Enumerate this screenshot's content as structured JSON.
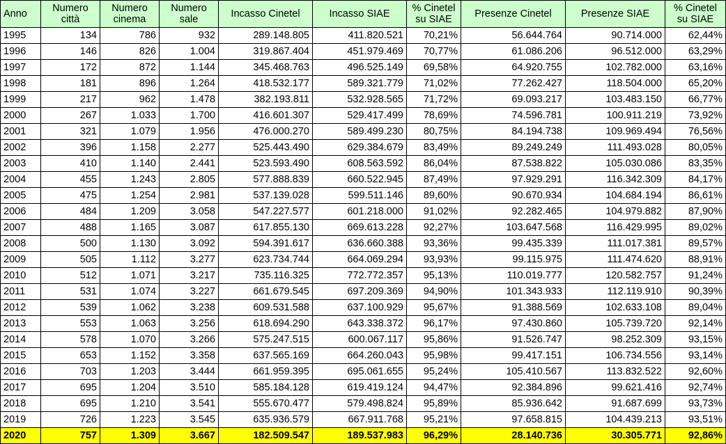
{
  "columns": [
    "Anno",
    "Numero città",
    "Numero cinema",
    "Numero sale",
    "Incasso Cinetel",
    "Incasso SIAE",
    "% Cinetel su SIAE",
    "Presenze Cinetel",
    "Presenze SIAE",
    "% Cinetel su SIAE"
  ],
  "rows": [
    [
      "1995",
      "134",
      "786",
      "932",
      "289.148.805",
      "411.820.521",
      "70,21%",
      "56.644.764",
      "90.714.000",
      "62,44%"
    ],
    [
      "1996",
      "146",
      "826",
      "1.004",
      "319.867.404",
      "451.979.469",
      "70,77%",
      "61.086.206",
      "96.512.000",
      "63,29%"
    ],
    [
      "1997",
      "172",
      "872",
      "1.144",
      "345.468.763",
      "496.525.149",
      "69,58%",
      "64.920.755",
      "102.782.000",
      "63,16%"
    ],
    [
      "1998",
      "181",
      "896",
      "1.264",
      "418.532.177",
      "589.321.779",
      "71,02%",
      "77.262.427",
      "118.504.000",
      "65,20%"
    ],
    [
      "1999",
      "217",
      "962",
      "1.478",
      "382.193.811",
      "532.928.565",
      "71,72%",
      "69.093.217",
      "103.483.150",
      "66,77%"
    ],
    [
      "2000",
      "267",
      "1.033",
      "1.700",
      "416.601.307",
      "529.417.499",
      "78,69%",
      "74.596.781",
      "100.911.219",
      "73,92%"
    ],
    [
      "2001",
      "321",
      "1.079",
      "1.956",
      "476.000.270",
      "589.499.230",
      "80,75%",
      "84.194.738",
      "109.969.494",
      "76,56%"
    ],
    [
      "2002",
      "396",
      "1.158",
      "2.277",
      "525.443.490",
      "629.384.679",
      "83,49%",
      "89.249.249",
      "111.493.028",
      "80,05%"
    ],
    [
      "2003",
      "410",
      "1.140",
      "2.441",
      "523.593.490",
      "608.563.592",
      "86,04%",
      "87.538.822",
      "105.030.086",
      "83,35%"
    ],
    [
      "2004",
      "455",
      "1.243",
      "2.805",
      "577.888.839",
      "660.522.945",
      "87,49%",
      "97.929.291",
      "116.342.309",
      "84,17%"
    ],
    [
      "2005",
      "475",
      "1.254",
      "2.981",
      "537.139.028",
      "599.511.146",
      "89,60%",
      "90.670.934",
      "104.684.194",
      "86,61%"
    ],
    [
      "2006",
      "484",
      "1.209",
      "3.058",
      "547.227.577",
      "601.218.000",
      "91,02%",
      "92.282.465",
      "104.979.882",
      "87,90%"
    ],
    [
      "2007",
      "488",
      "1.165",
      "3.087",
      "617.855.130",
      "669.613.228",
      "92,27%",
      "103.647.568",
      "116.429.995",
      "89,02%"
    ],
    [
      "2008",
      "500",
      "1.130",
      "3.092",
      "594.391.617",
      "636.660.388",
      "93,36%",
      "99.435.339",
      "111.017.381",
      "89,57%"
    ],
    [
      "2009",
      "505",
      "1.112",
      "3.277",
      "623.734.744",
      "664.069.294",
      "93,93%",
      "99.115.975",
      "111.474.620",
      "88,91%"
    ],
    [
      "2010",
      "512",
      "1.071",
      "3.217",
      "735.116.325",
      "772.772.357",
      "95,13%",
      "110.019.777",
      "120.582.757",
      "91,24%"
    ],
    [
      "2011",
      "531",
      "1.074",
      "3.227",
      "661.679.545",
      "697.209.369",
      "94,90%",
      "101.343.933",
      "112.119.910",
      "90,39%"
    ],
    [
      "2012",
      "539",
      "1.062",
      "3.238",
      "609.531.588",
      "637.100.929",
      "95,67%",
      "91.388.569",
      "102.633.108",
      "89,04%"
    ],
    [
      "2013",
      "553",
      "1.063",
      "3.256",
      "618.694.290",
      "643.338.372",
      "96,17%",
      "97.430.860",
      "105.739.720",
      "92,14%"
    ],
    [
      "2014",
      "578",
      "1.070",
      "3.266",
      "575.247.515",
      "600.067.117",
      "95,86%",
      "91.526.747",
      "98.252.309",
      "93,15%"
    ],
    [
      "2015",
      "653",
      "1.152",
      "3.358",
      "637.565.169",
      "664.260.043",
      "95,98%",
      "99.417.151",
      "106.734.556",
      "93,14%"
    ],
    [
      "2016",
      "703",
      "1.203",
      "3.444",
      "661.959.395",
      "695.061.655",
      "95,24%",
      "105.410.567",
      "113.832.522",
      "92,60%"
    ],
    [
      "2017",
      "695",
      "1.204",
      "3.510",
      "585.184.128",
      "619.419.124",
      "94,47%",
      "92.384.896",
      "99.621.416",
      "92,74%"
    ],
    [
      "2018",
      "695",
      "1.210",
      "3.541",
      "555.670.477",
      "579.498.824",
      "95,89%",
      "85.936.642",
      "91.687.699",
      "93,73%"
    ],
    [
      "2019",
      "726",
      "1.223",
      "3.545",
      "635.936.579",
      "667.911.768",
      "95,21%",
      "97.658.815",
      "104.439.213",
      "93,51%"
    ],
    [
      "2020",
      "757",
      "1.309",
      "3.667",
      "182.509.547",
      "189.537.983",
      "96,29%",
      "28.140.736",
      "30.305.771",
      "92,86%"
    ]
  ],
  "highlight_row_year": "2020",
  "colors": {
    "header_bg": "#ccffcc",
    "highlight_bg": "#ffff00",
    "border": "#000000"
  }
}
